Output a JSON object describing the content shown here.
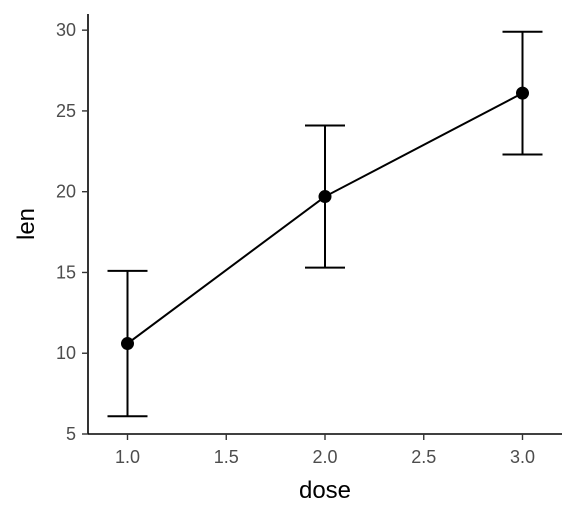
{
  "chart_data": {
    "type": "line",
    "xlabel": "dose",
    "ylabel": "len",
    "xlim": [
      0.8,
      3.2
    ],
    "ylim": [
      5,
      31
    ],
    "x_ticks": [
      1.0,
      1.5,
      2.0,
      2.5,
      3.0
    ],
    "x_tick_labels": [
      "1.0",
      "1.5",
      "2.0",
      "2.5",
      "3.0"
    ],
    "y_ticks": [
      5,
      10,
      15,
      20,
      25,
      30
    ],
    "y_tick_labels": [
      "5",
      "10",
      "15",
      "20",
      "25",
      "30"
    ],
    "grid": false,
    "legend": "none",
    "series": [
      {
        "x": [
          1.0,
          2.0,
          3.0
        ],
        "y": [
          10.6,
          19.7,
          26.1
        ],
        "error_low": [
          6.1,
          15.3,
          22.3
        ],
        "error_high": [
          15.1,
          24.1,
          29.9
        ],
        "color": "#000000"
      }
    ]
  }
}
